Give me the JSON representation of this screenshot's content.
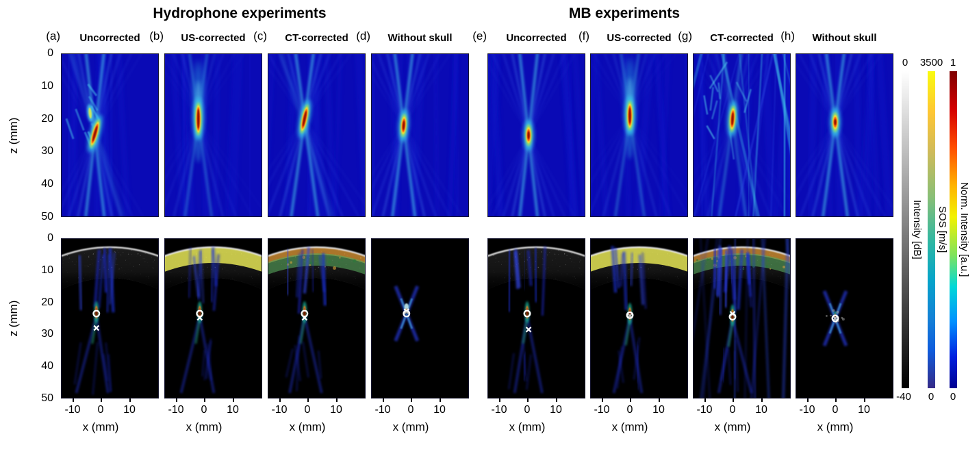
{
  "figure": {
    "groups": [
      {
        "title": "Hydrophone experiments"
      },
      {
        "title": "MB experiments"
      }
    ]
  },
  "axes": {
    "z_label": "z (mm)",
    "z_ticks": [
      "0",
      "10",
      "20",
      "30",
      "40",
      "50"
    ],
    "x_label": "x (mm)",
    "x_ticks": [
      "-10",
      "0",
      "10"
    ]
  },
  "colorbars": [
    {
      "name": "intensity-db",
      "label": "Intensity [dB]",
      "top_tick": "0",
      "bottom_tick": "-40",
      "colormap": "grayscale"
    },
    {
      "name": "sos",
      "label": "SOS [m/s]",
      "top_tick": "3500",
      "bottom_tick": "0",
      "colormap": "parula"
    },
    {
      "name": "norm-intensity",
      "label": "Norm. Intensity [a.u.]",
      "top_tick": "1",
      "bottom_tick": "0",
      "colormap": "jet"
    }
  ],
  "chart_data": {
    "type": "heatmap",
    "layout": "2 rows x 8 columns of ultrasound focusing maps",
    "rows": [
      "Beam normalized intensity map (jet colormap, blue background with focal spot)",
      "Beam overlaid on B-mode skull image with SOS overlay and focus markers (white circle = target, white x = achieved focus)"
    ],
    "x_axis": {
      "label": "x (mm)",
      "ticks": [
        -10,
        0,
        10
      ]
    },
    "z_axis": {
      "label": "z (mm)",
      "ticks": [
        0,
        10,
        20,
        30,
        40,
        50
      ],
      "range": [
        0,
        50
      ]
    },
    "panels": [
      {
        "letter": "(a)",
        "condition": "Uncorrected",
        "group": "Hydrophone experiments",
        "beam_map": {
          "focus_x_mm": -2,
          "focus_z_mm": 24.5,
          "tilt_deg": 16,
          "core_len_mm": 7,
          "style": "tilted-messy"
        },
        "overlay_map": {
          "skull": true,
          "sos_overlay": "none",
          "target_marker_mm": [
            -1.5,
            23.5
          ],
          "focus_marker_mm": [
            -1.5,
            28
          ],
          "beam_style": "deep"
        }
      },
      {
        "letter": "(b)",
        "condition": "US-corrected",
        "group": "Hydrophone experiments",
        "beam_map": {
          "focus_x_mm": -2,
          "focus_z_mm": 20,
          "tilt_deg": 0,
          "core_len_mm": 8,
          "style": "vertical"
        },
        "overlay_map": {
          "skull": true,
          "sos_overlay": "us",
          "target_marker_mm": [
            -1.5,
            23.5
          ],
          "focus_marker_mm": [
            -1.5,
            24.8
          ],
          "beam_style": "deep"
        }
      },
      {
        "letter": "(c)",
        "condition": "CT-corrected",
        "group": "Hydrophone experiments",
        "beam_map": {
          "focus_x_mm": -1,
          "focus_z_mm": 20,
          "tilt_deg": 12,
          "core_len_mm": 7,
          "style": "tilted"
        },
        "overlay_map": {
          "skull": true,
          "sos_overlay": "ct",
          "target_marker_mm": [
            -1,
            23.5
          ],
          "focus_marker_mm": [
            -1,
            24.8
          ],
          "beam_style": "deep"
        }
      },
      {
        "letter": "(d)",
        "condition": "Without skull",
        "group": "Hydrophone experiments",
        "beam_map": {
          "focus_x_mm": -2.5,
          "focus_z_mm": 22,
          "tilt_deg": 4,
          "core_len_mm": 5,
          "style": "clean-x"
        },
        "overlay_map": {
          "skull": false,
          "sos_overlay": "none",
          "target_marker_mm": [
            -1.5,
            23.5
          ],
          "focus_marker_mm": [
            -1.5,
            22.8
          ],
          "beam_style": "short"
        }
      },
      {
        "letter": "(e)",
        "condition": "Uncorrected",
        "group": "MB experiments",
        "beam_map": {
          "focus_x_mm": 0.5,
          "focus_z_mm": 25,
          "tilt_deg": 0,
          "core_len_mm": 4.5,
          "style": "clean-x"
        },
        "overlay_map": {
          "skull": true,
          "sos_overlay": "none",
          "target_marker_mm": [
            0,
            23.5
          ],
          "focus_marker_mm": [
            0.5,
            28.5
          ],
          "beam_style": "deep"
        }
      },
      {
        "letter": "(f)",
        "condition": "US-corrected",
        "group": "MB experiments",
        "beam_map": {
          "focus_x_mm": 0,
          "focus_z_mm": 19,
          "tilt_deg": 0,
          "core_len_mm": 7,
          "style": "vertical"
        },
        "overlay_map": {
          "skull": true,
          "sos_overlay": "us",
          "target_marker_mm": [
            0,
            24
          ],
          "focus_marker_mm": [
            0,
            24.2
          ],
          "beam_style": "deep"
        }
      },
      {
        "letter": "(g)",
        "condition": "CT-corrected",
        "group": "MB experiments",
        "beam_map": {
          "focus_x_mm": 0,
          "focus_z_mm": 20,
          "tilt_deg": 4,
          "core_len_mm": 6,
          "style": "messy"
        },
        "overlay_map": {
          "skull": true,
          "sos_overlay": "ct",
          "target_marker_mm": [
            0,
            24.5
          ],
          "focus_marker_mm": [
            0,
            23.6
          ],
          "beam_style": "messy"
        }
      },
      {
        "letter": "(h)",
        "condition": "Without skull",
        "group": "MB experiments",
        "beam_map": {
          "focus_x_mm": 0,
          "focus_z_mm": 21,
          "tilt_deg": 0,
          "core_len_mm": 4,
          "style": "clean-x"
        },
        "overlay_map": {
          "skull": false,
          "sos_overlay": "none",
          "target_marker_mm": [
            0,
            25
          ],
          "focus_marker_mm": [
            0,
            25
          ],
          "beam_style": "short"
        }
      }
    ]
  }
}
